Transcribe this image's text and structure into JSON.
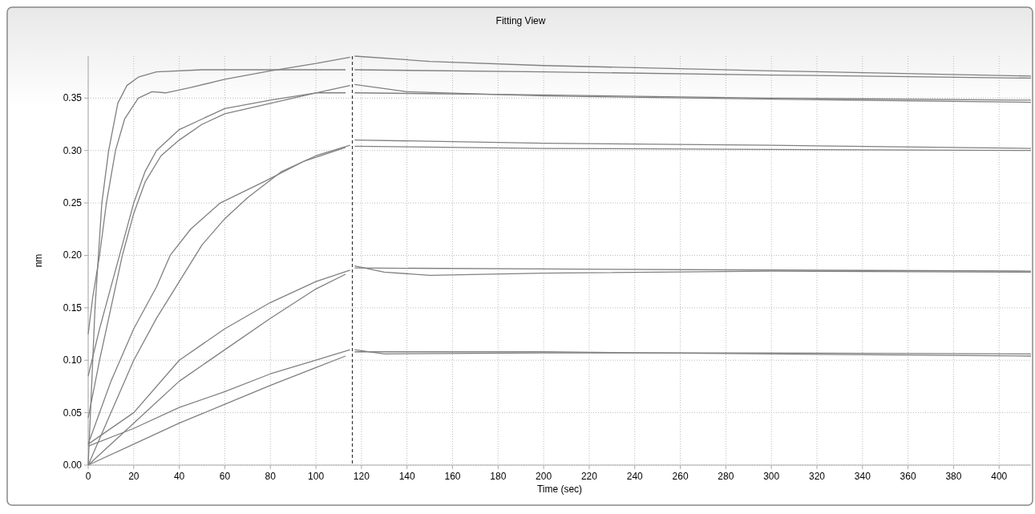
{
  "chart_data": {
    "type": "line",
    "title": "Fitting View",
    "xlabel": "Time (sec)",
    "ylabel": "nm",
    "xlim": [
      0,
      414
    ],
    "ylim": [
      0,
      0.39
    ],
    "xticks": [
      0,
      20,
      40,
      60,
      80,
      100,
      120,
      140,
      160,
      180,
      200,
      220,
      240,
      260,
      280,
      300,
      320,
      340,
      360,
      380,
      400
    ],
    "yticks": [
      {
        "value": 0,
        "label": "0.00"
      },
      {
        "value": 0.05,
        "label": "0.05"
      },
      {
        "value": 0.1,
        "label": "0.10"
      },
      {
        "value": 0.15,
        "label": "0.15"
      },
      {
        "value": 0.2,
        "label": "0.20"
      },
      {
        "value": 0.25,
        "label": "0.25"
      },
      {
        "value": 0.3,
        "label": "0.30"
      },
      {
        "value": 0.35,
        "label": "0.35"
      }
    ],
    "grid": true,
    "marker": "none",
    "line_style": "solid",
    "ref_lines": [
      {
        "axis": "x",
        "value": 116,
        "color": "#333333",
        "line_style": "dashed"
      }
    ],
    "series": [
      {
        "color": "#808080",
        "x": [
          0,
          3,
          6,
          9,
          13,
          17,
          22,
          30,
          50,
          113
        ],
        "values": [
          0,
          0.15,
          0.25,
          0.3,
          0.345,
          0.362,
          0.37,
          0.375,
          0.377,
          0.377
        ]
      },
      {
        "color": "#808080",
        "x": [
          117,
          200,
          300,
          414
        ],
        "values": [
          0.377,
          0.375,
          0.372,
          0.369
        ]
      },
      {
        "color": "#808080",
        "x": [
          0,
          2,
          5,
          8,
          12,
          16,
          22,
          28,
          34,
          45,
          60,
          80,
          100,
          115
        ],
        "values": [
          0.125,
          0.16,
          0.2,
          0.25,
          0.3,
          0.33,
          0.35,
          0.356,
          0.355,
          0.36,
          0.368,
          0.376,
          0.383,
          0.389
        ]
      },
      {
        "color": "#808080",
        "x": [
          117,
          150,
          200,
          300,
          414
        ],
        "values": [
          0.39,
          0.385,
          0.381,
          0.376,
          0.371
        ]
      },
      {
        "color": "#808080",
        "x": [
          0,
          5,
          10,
          15,
          20,
          25,
          30,
          40,
          60,
          80,
          100,
          113
        ],
        "values": [
          0.085,
          0.13,
          0.17,
          0.21,
          0.25,
          0.28,
          0.3,
          0.32,
          0.34,
          0.348,
          0.355,
          0.355
        ]
      },
      {
        "color": "#808080",
        "x": [
          117,
          200,
          300,
          414
        ],
        "values": [
          0.355,
          0.353,
          0.35,
          0.348
        ]
      },
      {
        "color": "#808080",
        "x": [
          0,
          5,
          10,
          15,
          20,
          25,
          32,
          40,
          50,
          60,
          80,
          100,
          115
        ],
        "values": [
          0.045,
          0.1,
          0.15,
          0.2,
          0.24,
          0.27,
          0.295,
          0.31,
          0.325,
          0.335,
          0.345,
          0.355,
          0.362
        ]
      },
      {
        "color": "#808080",
        "x": [
          117,
          140,
          200,
          300,
          414
        ],
        "values": [
          0.363,
          0.356,
          0.352,
          0.349,
          0.346
        ]
      },
      {
        "color": "#808080",
        "x": [
          0,
          10,
          20,
          30,
          36,
          45,
          58,
          77,
          95,
          113
        ],
        "values": [
          0.02,
          0.08,
          0.13,
          0.17,
          0.2,
          0.225,
          0.25,
          0.27,
          0.29,
          0.303
        ]
      },
      {
        "color": "#808080",
        "x": [
          117,
          200,
          300,
          414
        ],
        "values": [
          0.31,
          0.307,
          0.305,
          0.302
        ]
      },
      {
        "color": "#808080",
        "x": [
          0,
          10,
          20,
          30,
          40,
          50,
          60,
          70,
          85,
          100,
          115
        ],
        "values": [
          0,
          0.05,
          0.1,
          0.14,
          0.175,
          0.21,
          0.235,
          0.255,
          0.28,
          0.295,
          0.305
        ]
      },
      {
        "color": "#808080",
        "x": [
          117,
          200,
          300,
          414
        ],
        "values": [
          0.304,
          0.302,
          0.301,
          0.3
        ]
      },
      {
        "color": "#808080",
        "x": [
          0,
          20,
          40,
          60,
          80,
          100,
          115
        ],
        "values": [
          0.02,
          0.05,
          0.1,
          0.13,
          0.155,
          0.175,
          0.186
        ]
      },
      {
        "color": "#808080",
        "x": [
          117,
          130,
          150,
          200,
          300,
          414
        ],
        "values": [
          0.19,
          0.184,
          0.181,
          0.183,
          0.185,
          0.184
        ]
      },
      {
        "color": "#808080",
        "x": [
          0,
          20,
          40,
          60,
          80,
          100,
          113
        ],
        "values": [
          0,
          0.04,
          0.08,
          0.11,
          0.14,
          0.168,
          0.182
        ]
      },
      {
        "color": "#808080",
        "x": [
          117,
          200,
          300,
          414
        ],
        "values": [
          0.188,
          0.187,
          0.186,
          0.185
        ]
      },
      {
        "color": "#808080",
        "x": [
          0,
          20,
          40,
          60,
          80,
          100,
          115
        ],
        "values": [
          0.018,
          0.035,
          0.055,
          0.07,
          0.087,
          0.1,
          0.11
        ]
      },
      {
        "color": "#808080",
        "x": [
          117,
          130,
          200,
          300,
          414
        ],
        "values": [
          0.11,
          0.106,
          0.107,
          0.107,
          0.106
        ]
      },
      {
        "color": "#808080",
        "x": [
          0,
          20,
          40,
          60,
          80,
          100,
          113
        ],
        "values": [
          0,
          0.02,
          0.04,
          0.058,
          0.076,
          0.093,
          0.104
        ]
      },
      {
        "color": "#808080",
        "x": [
          117,
          200,
          300,
          414
        ],
        "values": [
          0.108,
          0.108,
          0.106,
          0.104
        ]
      }
    ]
  }
}
